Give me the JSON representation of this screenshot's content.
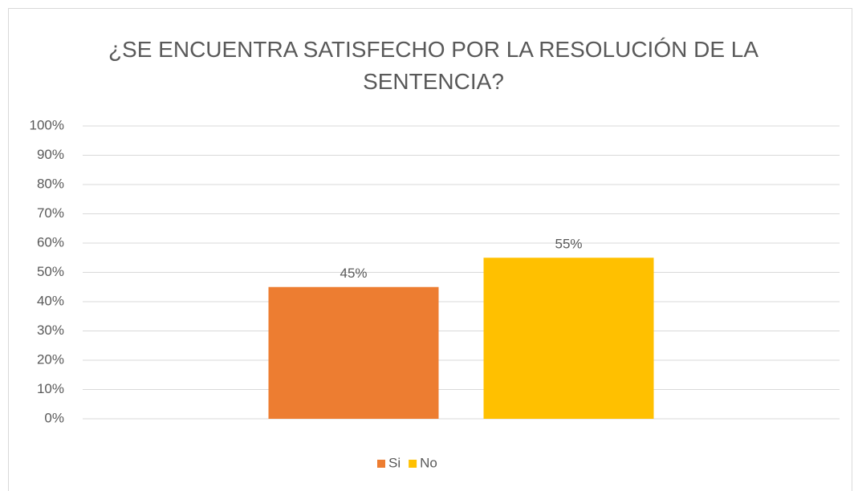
{
  "chart_data": {
    "type": "bar",
    "title": "¿SE ENCUENTRA SATISFECHO POR LA RESOLUCIÓN DE LA SENTENCIA?",
    "categories": [
      null
    ],
    "series": [
      {
        "name": "Si",
        "color": "#ed7d31",
        "values": [
          45
        ],
        "value_labels": [
          "45%"
        ]
      },
      {
        "name": "No",
        "color": "#ffc000",
        "values": [
          55
        ],
        "value_labels": [
          "55%"
        ]
      }
    ],
    "ylim": [
      0,
      100
    ],
    "yticks": [
      {
        "value": 0,
        "label": "0%"
      },
      {
        "value": 10,
        "label": "10%"
      },
      {
        "value": 20,
        "label": "20%"
      },
      {
        "value": 30,
        "label": "30%"
      },
      {
        "value": 40,
        "label": "40%"
      },
      {
        "value": 50,
        "label": "50%"
      },
      {
        "value": 60,
        "label": "60%"
      },
      {
        "value": 70,
        "label": "70%"
      },
      {
        "value": 80,
        "label": "80%"
      },
      {
        "value": 90,
        "label": "90%"
      },
      {
        "value": 100,
        "label": "100%"
      }
    ],
    "grid": true,
    "legend": "bottom"
  }
}
